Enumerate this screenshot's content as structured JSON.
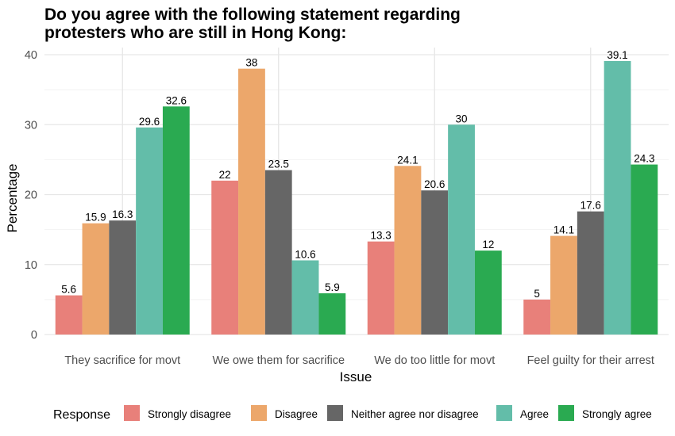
{
  "chart_data": {
    "type": "bar",
    "title_lines": [
      "Do you agree with the following statement regarding",
      "protesters who are still in Hong Kong:"
    ],
    "xlabel": "Issue",
    "ylabel": "Percentage",
    "ylim": [
      0,
      40
    ],
    "yticks": [
      0,
      10,
      20,
      30,
      40
    ],
    "grid": true,
    "legend_title": "Response",
    "legend_position": "bottom",
    "categories": [
      "They sacrifice for movt",
      "We owe them for sacrifice",
      "We do too little for movt",
      "Feel guilty for their arrest"
    ],
    "series": [
      {
        "name": "Strongly disagree",
        "color": "#E8807A",
        "values": [
          5.6,
          22,
          13.3,
          5
        ],
        "labels": [
          "5.6",
          "22",
          "13.3",
          "5"
        ]
      },
      {
        "name": "Disagree",
        "color": "#ECA76B",
        "values": [
          15.9,
          38,
          24.1,
          14.1
        ],
        "labels": [
          "15.9",
          "38",
          "24.1",
          "14.1"
        ]
      },
      {
        "name": "Neither agree nor disagree",
        "color": "#666666",
        "values": [
          16.3,
          23.5,
          20.6,
          17.6
        ],
        "labels": [
          "16.3",
          "23.5",
          "20.6",
          "17.6"
        ]
      },
      {
        "name": "Agree",
        "color": "#63BDA9",
        "values": [
          29.6,
          10.6,
          30,
          39.1
        ],
        "labels": [
          "29.6",
          "10.6",
          "30",
          "39.1"
        ]
      },
      {
        "name": "Strongly agree",
        "color": "#2AAA51",
        "values": [
          32.6,
          5.9,
          12,
          24.3
        ],
        "labels": [
          "32.6",
          "5.9",
          "12",
          "24.3"
        ]
      }
    ]
  }
}
